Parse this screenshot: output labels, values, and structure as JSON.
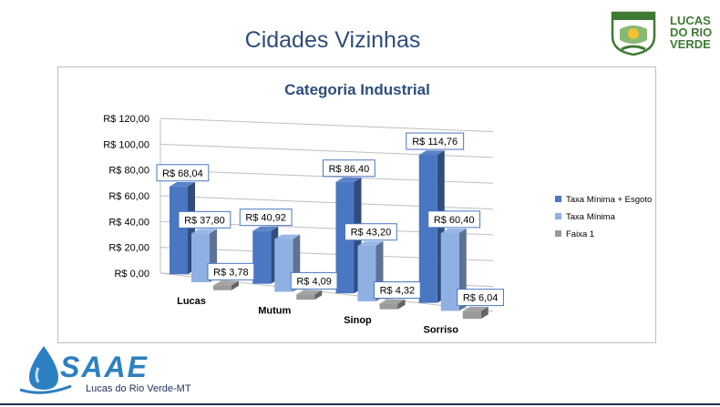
{
  "slide": {
    "title": "Cidades Vizinhas"
  },
  "header_logo": {
    "brand_lines": [
      "LUCAS",
      "DO RIO",
      "VERDE"
    ]
  },
  "footer_logo": {
    "brand": "SAAE",
    "subtitle": "Lucas do Rio Verde-MT"
  },
  "colors": {
    "series1": "#4a76c2",
    "series2": "#8fb0e3",
    "series3": "#9a9a9a",
    "title": "#2e4d7b",
    "label_border": "#4a76c2",
    "green_brand": "#3f7a35",
    "saae_blue": "#2c7fc1"
  },
  "chart_data": {
    "type": "bar",
    "title": "Categoria Industrial",
    "categories": [
      "Lucas",
      "Mutum",
      "Sinop",
      "Sorriso"
    ],
    "series": [
      {
        "name": "Taxa Mínima + Esgoto",
        "values": [
          68.04,
          40.92,
          86.4,
          114.76
        ],
        "labels": [
          "R$ 68,04",
          "R$ 40,92",
          "R$ 86,40",
          "R$ 114,76"
        ]
      },
      {
        "name": "Taxa Mínima",
        "values": [
          37.8,
          40.92,
          43.2,
          60.4
        ],
        "labels": [
          "R$ 37,80",
          "",
          "R$ 43,20",
          "R$ 60,40"
        ]
      },
      {
        "name": "Faixa 1",
        "values": [
          3.78,
          4.09,
          4.32,
          6.04
        ],
        "labels": [
          "R$ 3,78",
          "R$ 4,09",
          "R$ 4,32",
          "R$ 6,04"
        ]
      }
    ],
    "ylim": [
      0,
      120
    ],
    "yticks": [
      "R$ 0,00",
      "R$ 20,00",
      "R$ 40,00",
      "R$ 60,00",
      "R$ 80,00",
      "R$ 100,00",
      "R$ 120,00"
    ],
    "grid": true,
    "legend_position": "right",
    "projection": "3d"
  }
}
